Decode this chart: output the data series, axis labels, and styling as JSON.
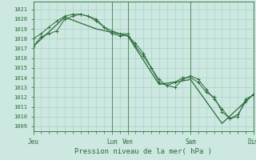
{
  "bg_color": "#cce8e0",
  "grid_color": "#a8d0c8",
  "line_color": "#2d6b3a",
  "ylabel_values": [
    1009,
    1010,
    1011,
    1012,
    1013,
    1014,
    1015,
    1016,
    1017,
    1018,
    1019,
    1020,
    1021
  ],
  "xlabel": "Pression niveau de la mer( hPa )",
  "xlim": [
    0,
    168
  ],
  "ylim": [
    1008.5,
    1021.8
  ],
  "line1_x": [
    0,
    6,
    12,
    18,
    24,
    30,
    36,
    42,
    48,
    54,
    60,
    66,
    72,
    78,
    84,
    90,
    96,
    102,
    108,
    114,
    120,
    126,
    132,
    138,
    144,
    150,
    156,
    162,
    168
  ],
  "line1_y": [
    1017.2,
    1018.2,
    1018.5,
    1018.8,
    1020.0,
    1020.3,
    1020.5,
    1020.3,
    1020.0,
    1019.2,
    1018.5,
    1018.3,
    1018.3,
    1017.5,
    1016.5,
    1015.0,
    1013.5,
    1013.2,
    1013.5,
    1014.0,
    1014.0,
    1013.5,
    1012.5,
    1012.0,
    1010.5,
    1009.8,
    1010.2,
    1011.5,
    1012.3
  ],
  "line2_x": [
    0,
    6,
    12,
    18,
    24,
    30,
    36,
    42,
    48,
    54,
    60,
    66,
    72,
    78,
    84,
    90,
    96,
    102,
    108,
    114,
    120,
    126,
    132,
    138,
    144,
    150,
    156,
    162,
    168
  ],
  "line2_y": [
    1018.0,
    1018.5,
    1019.2,
    1019.8,
    1020.3,
    1020.5,
    1020.5,
    1020.3,
    1019.8,
    1019.2,
    1018.8,
    1018.5,
    1018.5,
    1017.2,
    1016.2,
    1015.0,
    1013.8,
    1013.2,
    1013.0,
    1013.8,
    1014.2,
    1013.8,
    1012.8,
    1011.8,
    1010.8,
    1009.8,
    1010.0,
    1011.8,
    1012.2
  ],
  "line3_x": [
    0,
    24,
    48,
    72,
    96,
    120,
    144,
    168
  ],
  "line3_y": [
    1017.2,
    1020.2,
    1019.0,
    1018.3,
    1013.3,
    1013.8,
    1009.3,
    1012.3
  ],
  "vline_x": [
    60,
    72,
    120,
    168
  ],
  "day_tick_positions": [
    0,
    60,
    72,
    120,
    168
  ],
  "day_labels": [
    "Jeu",
    "Lun",
    "Ven",
    "Sam",
    "Dim"
  ],
  "minor_x_ticks": [
    6,
    12,
    18,
    24,
    30,
    36,
    42,
    48,
    54,
    66,
    78,
    84,
    90,
    96,
    102,
    108,
    114,
    126,
    132,
    138,
    144,
    150,
    156,
    162
  ]
}
